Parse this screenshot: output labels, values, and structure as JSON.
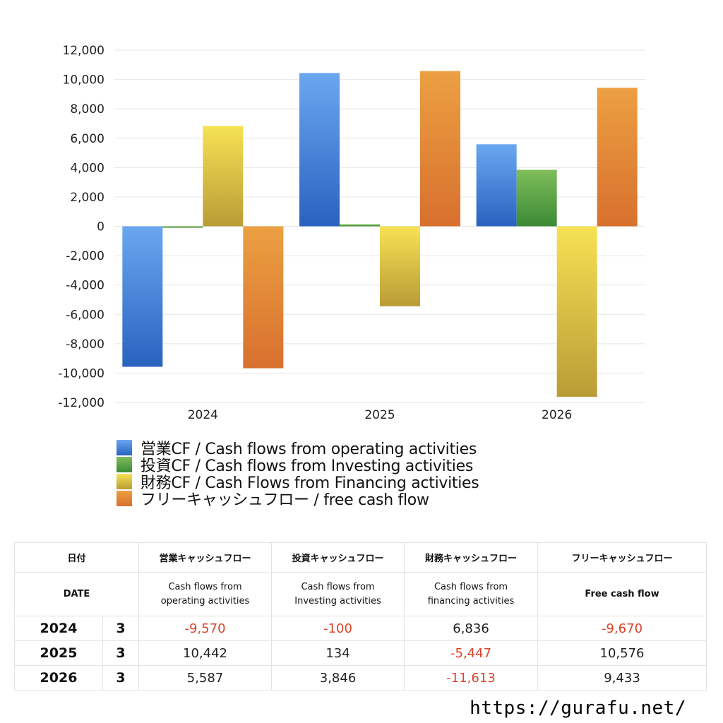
{
  "chart_data": {
    "type": "bar",
    "categories": [
      "2024",
      "2025",
      "2026"
    ],
    "ylim": [
      -12000,
      12000
    ],
    "yticks": [
      12000,
      10000,
      8000,
      6000,
      4000,
      2000,
      0,
      -2000,
      -4000,
      -6000,
      -8000,
      -10000,
      -12000
    ],
    "ytick_labels": [
      "12,000",
      "10,000",
      "8,000",
      "6,000",
      "4,000",
      "2,000",
      "0",
      "-2,000",
      "-4,000",
      "-6,000",
      "-8,000",
      "-10,000",
      "-12,000"
    ],
    "grid": true,
    "legend_position": "bottom",
    "series": [
      {
        "name": "営業CF / Cash flows from operating activities",
        "values": [
          -9570,
          10442,
          5587
        ],
        "color_top": "#6aa7f0",
        "color_bottom": "#2a62c0"
      },
      {
        "name": "投資CF / Cash flows from Investing activities",
        "values": [
          -100,
          134,
          3846
        ],
        "color_top": "#7fbe5a",
        "color_bottom": "#3b8a36"
      },
      {
        "name": "財務CF / Cash Flows from Financing activities",
        "values": [
          6836,
          -5447,
          -11613
        ],
        "color_top": "#f6e254",
        "color_bottom": "#b99c36"
      },
      {
        "name": "フリーキャッシュフロー / free cash flow",
        "values": [
          -9670,
          10576,
          9433
        ],
        "color_top": "#eca042",
        "color_bottom": "#d8702e"
      }
    ]
  },
  "table": {
    "header_jp": [
      "日付",
      "営業キャッシュフロー",
      "投資キャッシュフロー",
      "財務キャッシュフロー",
      "フリーキャッシュフロー"
    ],
    "header_en": [
      "DATE",
      "Cash flows from\noperating activities",
      "Cash flows from\nInvesting activities",
      "Cash flows from\nfinancing activities",
      "Free cash flow"
    ],
    "rows": [
      {
        "year": "2024",
        "month": "3",
        "values": [
          "-9,570",
          "-100",
          "6,836",
          "-9,670"
        ]
      },
      {
        "year": "2025",
        "month": "3",
        "values": [
          "10,442",
          "134",
          "-5,447",
          "10,576"
        ]
      },
      {
        "year": "2026",
        "month": "3",
        "values": [
          "5,587",
          "3,846",
          "-11,613",
          "9,433"
        ]
      }
    ]
  },
  "footer": {
    "url": "https://gurafu.net/"
  }
}
